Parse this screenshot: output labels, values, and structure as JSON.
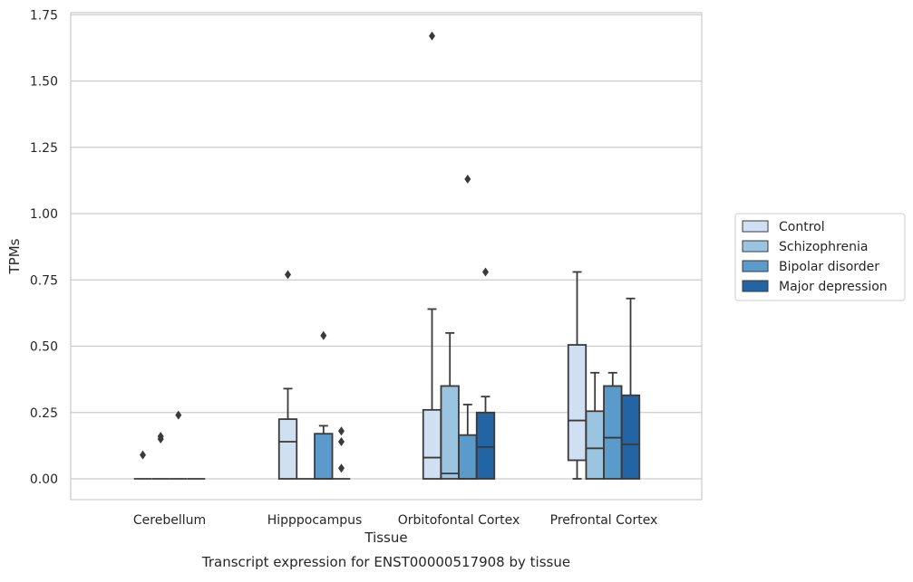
{
  "chart_data": {
    "type": "box",
    "title": "",
    "caption": "Transcript expression for ENST00000517908 by tissue",
    "xlabel": "Tissue",
    "ylabel": "TPMs",
    "ylim": [
      -0.08,
      1.76
    ],
    "yticks": [
      0.0,
      0.25,
      0.5,
      0.75,
      1.0,
      1.25,
      1.5,
      1.75
    ],
    "ytick_labels": [
      "0.00",
      "0.25",
      "0.50",
      "0.75",
      "1.00",
      "1.25",
      "1.50",
      "1.75"
    ],
    "grid": "horizontal",
    "legend_position": "right",
    "categories": [
      "Cerebellum",
      "Hipppocampus",
      "Orbitofontal Cortex",
      "Prefrontal Cortex"
    ],
    "series": [
      {
        "name": "Control",
        "color": "#d0e0f2",
        "boxes": [
          {
            "whisker_low": 0,
            "q1": 0,
            "median": 0,
            "q3": 0,
            "whisker_high": 0,
            "outliers": [
              0.09
            ]
          },
          {
            "whisker_low": 0,
            "q1": 0,
            "median": 0.14,
            "q3": 0.225,
            "whisker_high": 0.34,
            "outliers": [
              0.77
            ]
          },
          {
            "whisker_low": 0,
            "q1": 0,
            "median": 0.08,
            "q3": 0.26,
            "whisker_high": 0.64,
            "outliers": [
              1.67
            ]
          },
          {
            "whisker_low": 0,
            "q1": 0.07,
            "median": 0.22,
            "q3": 0.505,
            "whisker_high": 0.78,
            "outliers": []
          }
        ]
      },
      {
        "name": "Schizophrenia",
        "color": "#9bc4e0",
        "boxes": [
          {
            "whisker_low": 0,
            "q1": 0,
            "median": 0,
            "q3": 0,
            "whisker_high": 0,
            "outliers": [
              0.15,
              0.16
            ]
          },
          {
            "whisker_low": 0,
            "q1": 0,
            "median": 0,
            "q3": 0,
            "whisker_high": 0,
            "outliers": []
          },
          {
            "whisker_low": 0,
            "q1": 0,
            "median": 0.02,
            "q3": 0.35,
            "whisker_high": 0.55,
            "outliers": []
          },
          {
            "whisker_low": 0,
            "q1": 0,
            "median": 0.115,
            "q3": 0.255,
            "whisker_high": 0.4,
            "outliers": []
          }
        ]
      },
      {
        "name": "Bipolar disorder",
        "color": "#5a9bcb",
        "boxes": [
          {
            "whisker_low": 0,
            "q1": 0,
            "median": 0,
            "q3": 0,
            "whisker_high": 0,
            "outliers": [
              0.24
            ]
          },
          {
            "whisker_low": 0,
            "q1": 0,
            "median": 0,
            "q3": 0.17,
            "whisker_high": 0.2,
            "outliers": [
              0.54
            ]
          },
          {
            "whisker_low": 0,
            "q1": 0,
            "median": 0,
            "q3": 0.165,
            "whisker_high": 0.28,
            "outliers": [
              1.13
            ]
          },
          {
            "whisker_low": 0,
            "q1": 0,
            "median": 0.155,
            "q3": 0.35,
            "whisker_high": 0.4,
            "outliers": []
          }
        ]
      },
      {
        "name": "Major depression",
        "color": "#2364a5",
        "boxes": [
          {
            "whisker_low": 0,
            "q1": 0,
            "median": 0,
            "q3": 0,
            "whisker_high": 0,
            "outliers": []
          },
          {
            "whisker_low": 0,
            "q1": 0,
            "median": 0,
            "q3": 0,
            "whisker_high": 0,
            "outliers": [
              0.04,
              0.14,
              0.18
            ]
          },
          {
            "whisker_low": 0,
            "q1": 0,
            "median": 0.12,
            "q3": 0.25,
            "whisker_high": 0.31,
            "outliers": [
              0.78
            ]
          },
          {
            "whisker_low": 0,
            "q1": 0,
            "median": 0.13,
            "q3": 0.315,
            "whisker_high": 0.68,
            "outliers": []
          }
        ]
      }
    ]
  }
}
